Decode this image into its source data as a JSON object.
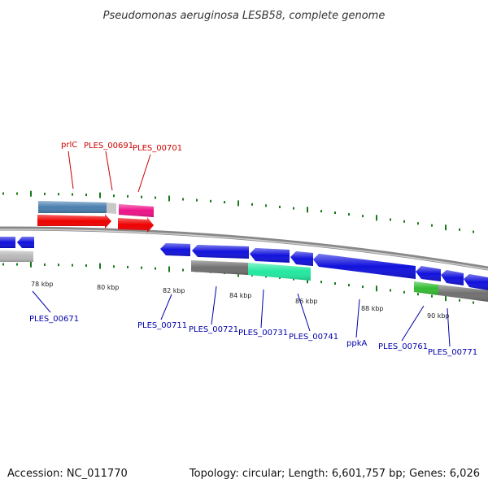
{
  "title": "Pseudomonas aeruginosa LESB58, complete genome",
  "footer": {
    "accession": "Accession: NC_011770",
    "info": "Topology: circular; Length: 6,601,757 bp; Genes: 6,026"
  },
  "colors": {
    "top_label": "#cc0000",
    "bottom_label": "#0000aa",
    "tick": "#1a7a1a",
    "backbone": "#888888",
    "forward_cds": "#ee0000",
    "reverse_cds": "#1111dd",
    "forward_gene_steelblue": "#4a7fb0",
    "forward_gene_pink": "#ee1188",
    "reverse_gene_gray": "#707070",
    "reverse_gene_lightgray": "#b8b8b8",
    "reverse_gene_aqua": "#22e8a0",
    "reverse_gene_green": "#33bb33"
  },
  "tick_labels": [
    "78 kbp",
    "80 kbp",
    "82 kbp",
    "84 kbp",
    "86 kbp",
    "88 kbp",
    "90 kbp"
  ],
  "top_labels": [
    "prlC",
    "PLES_00691",
    "PLES_00701"
  ],
  "bottom_labels": [
    "PLES_00671",
    "PLES_00711",
    "PLES_00721",
    "PLES_00731",
    "PLES_00741",
    "ppkA",
    "PLES_00761",
    "PLES_00771"
  ]
}
